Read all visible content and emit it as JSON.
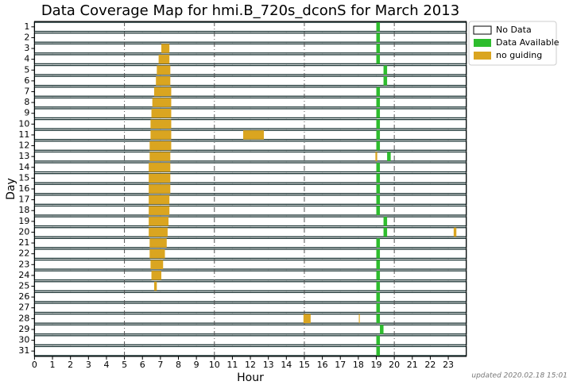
{
  "chart_data": {
    "type": "coverage",
    "title": "Data Coverage Map for hmi.B_720s_dconS for March 2013",
    "xlabel": "Hour",
    "ylabel": "Day",
    "footnote": "updated 2020.02.18 15:01",
    "categories": [
      1,
      2,
      3,
      4,
      5,
      6,
      7,
      8,
      9,
      10,
      11,
      12,
      13,
      14,
      15,
      16,
      17,
      18,
      19,
      20,
      21,
      22,
      23,
      24,
      25,
      26,
      27,
      28,
      29,
      30,
      31
    ],
    "xlim": [
      0,
      24
    ],
    "xticks": [
      0,
      1,
      2,
      3,
      4,
      5,
      6,
      7,
      8,
      9,
      10,
      11,
      12,
      13,
      14,
      15,
      16,
      17,
      18,
      19,
      20,
      21,
      22,
      23
    ],
    "vlines": [
      5,
      10,
      15,
      20
    ],
    "grid": true,
    "series": [
      {
        "name": "No Data",
        "color": "#ffffff",
        "segments": []
      },
      {
        "name": "Data Available",
        "color": "#2ebd2e",
        "segments": [
          [
            1,
            19.0,
            19.2
          ],
          [
            2,
            19.0,
            19.2
          ],
          [
            3,
            19.0,
            19.2
          ],
          [
            4,
            19.0,
            19.2
          ],
          [
            5,
            19.4,
            19.6
          ],
          [
            6,
            19.4,
            19.6
          ],
          [
            7,
            19.0,
            19.2
          ],
          [
            8,
            19.0,
            19.2
          ],
          [
            9,
            19.0,
            19.2
          ],
          [
            10,
            19.0,
            19.2
          ],
          [
            11,
            19.0,
            19.2
          ],
          [
            12,
            19.0,
            19.2
          ],
          [
            13,
            19.6,
            19.8
          ],
          [
            14,
            19.0,
            19.2
          ],
          [
            15,
            19.0,
            19.2
          ],
          [
            16,
            19.0,
            19.2
          ],
          [
            17,
            19.0,
            19.2
          ],
          [
            18,
            19.0,
            19.2
          ],
          [
            19,
            19.4,
            19.6
          ],
          [
            20,
            19.4,
            19.6
          ],
          [
            21,
            19.0,
            19.2
          ],
          [
            22,
            19.0,
            19.2
          ],
          [
            23,
            19.0,
            19.2
          ],
          [
            24,
            19.0,
            19.2
          ],
          [
            25,
            19.0,
            19.2
          ],
          [
            26,
            19.0,
            19.2
          ],
          [
            27,
            19.0,
            19.2
          ],
          [
            28,
            19.0,
            19.2
          ],
          [
            29,
            19.2,
            19.4
          ],
          [
            30,
            19.0,
            19.2
          ],
          [
            31,
            19.0,
            19.2
          ]
        ]
      },
      {
        "name": "no guiding",
        "color": "#daa520",
        "segments": [
          [
            3,
            7.05,
            7.5
          ],
          [
            4,
            6.9,
            7.5
          ],
          [
            5,
            6.8,
            7.55
          ],
          [
            6,
            6.75,
            7.55
          ],
          [
            7,
            6.65,
            7.6
          ],
          [
            8,
            6.55,
            7.6
          ],
          [
            9,
            6.5,
            7.6
          ],
          [
            10,
            6.45,
            7.6
          ],
          [
            11,
            6.45,
            7.6
          ],
          [
            11,
            11.6,
            12.75
          ],
          [
            12,
            6.4,
            7.6
          ],
          [
            13,
            6.4,
            7.55
          ],
          [
            13,
            18.95,
            19.05
          ],
          [
            14,
            6.35,
            7.55
          ],
          [
            15,
            6.35,
            7.55
          ],
          [
            16,
            6.35,
            7.55
          ],
          [
            17,
            6.35,
            7.5
          ],
          [
            18,
            6.35,
            7.5
          ],
          [
            19,
            6.35,
            7.45
          ],
          [
            20,
            6.35,
            7.4
          ],
          [
            20,
            23.3,
            23.45
          ],
          [
            21,
            6.4,
            7.35
          ],
          [
            22,
            6.4,
            7.25
          ],
          [
            23,
            6.45,
            7.15
          ],
          [
            24,
            6.5,
            7.05
          ],
          [
            25,
            6.65,
            6.8
          ],
          [
            28,
            14.95,
            15.35
          ],
          [
            28,
            18.03,
            18.08
          ]
        ]
      }
    ],
    "legend": "upper right"
  }
}
